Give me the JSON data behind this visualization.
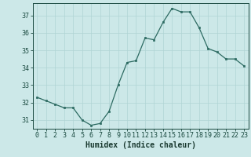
{
  "x": [
    0,
    1,
    2,
    3,
    4,
    5,
    6,
    7,
    8,
    9,
    10,
    11,
    12,
    13,
    14,
    15,
    16,
    17,
    18,
    19,
    20,
    21,
    22,
    23
  ],
  "y": [
    32.3,
    32.1,
    31.9,
    31.7,
    31.7,
    31.0,
    30.7,
    30.8,
    31.5,
    33.0,
    34.3,
    34.4,
    35.7,
    35.6,
    36.6,
    37.4,
    37.2,
    37.2,
    36.3,
    35.1,
    34.9,
    34.5,
    34.5,
    34.1
  ],
  "xlabel": "Humidex (Indice chaleur)",
  "xlim": [
    -0.5,
    23.5
  ],
  "ylim": [
    30.5,
    37.7
  ],
  "yticks": [
    31,
    32,
    33,
    34,
    35,
    36,
    37
  ],
  "xticks": [
    0,
    1,
    2,
    3,
    4,
    5,
    6,
    7,
    8,
    9,
    10,
    11,
    12,
    13,
    14,
    15,
    16,
    17,
    18,
    19,
    20,
    21,
    22,
    23
  ],
  "line_color": "#2d6b62",
  "marker_color": "#2d6b62",
  "bg_color": "#cce8e8",
  "grid_color": "#b0d4d4",
  "tick_label_color": "#1a4a40",
  "xlabel_color": "#1a3a30",
  "font_size_ticks": 6.0,
  "font_size_xlabel": 7.0
}
